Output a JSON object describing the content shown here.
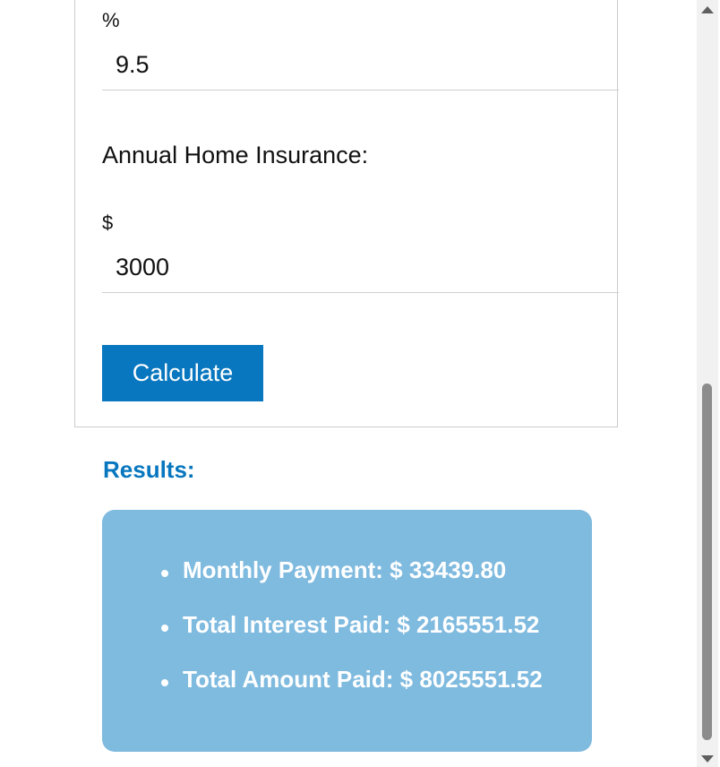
{
  "form": {
    "interest_rate": {
      "unit_label": "%",
      "value": "9.5"
    },
    "home_insurance": {
      "label": "Annual Home Insurance:",
      "unit_label": "$",
      "value": "3000"
    },
    "calculate_button_label": "Calculate"
  },
  "results": {
    "heading": "Results:",
    "box_color": "#7fbadf",
    "items": [
      "Monthly Payment: $ 33439.80",
      "Total Interest Paid: $ 2165551.52",
      "Total Amount Paid: $ 8025551.52"
    ]
  },
  "colors": {
    "accent": "#0877bf",
    "button_text": "#ffffff"
  },
  "icons": {
    "scroll_up": "scroll-up-arrow-icon",
    "scroll_down": "scroll-down-arrow-icon",
    "bullet": "bullet-icon"
  }
}
